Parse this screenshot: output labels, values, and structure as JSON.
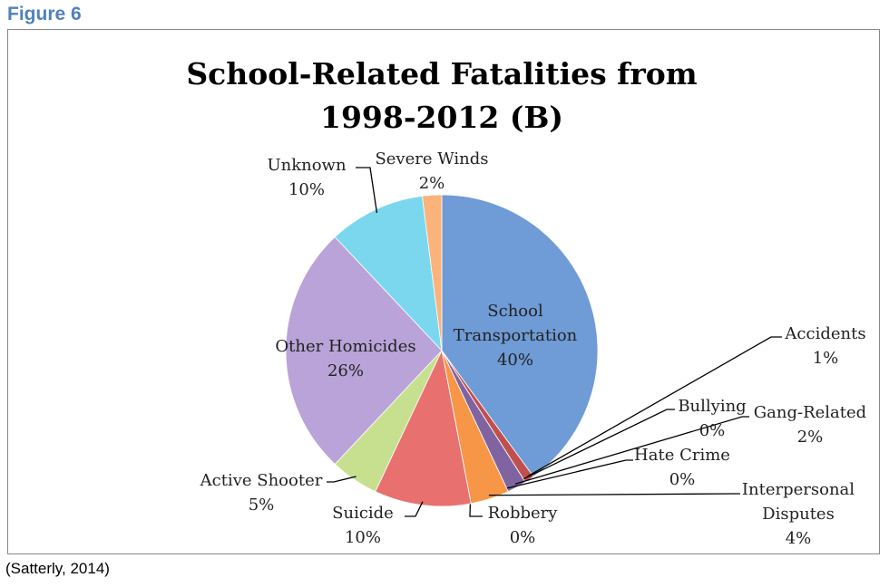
{
  "figure_label": "Figure 6",
  "caption": "(Satterly, 2014)",
  "chart_data": {
    "type": "pie",
    "title": "School-Related Fatalities from 1998-2012 (B)",
    "categories": [
      "School Transportation",
      "Accidents",
      "Bullying",
      "Gang-Related",
      "Hate Crime",
      "Interpersonal Disputes",
      "Robbery",
      "Suicide",
      "Active Shooter",
      "Other Homicides",
      "Unknown",
      "Severe Winds"
    ],
    "values": [
      40,
      1,
      0,
      2,
      0,
      4,
      0,
      10,
      5,
      26,
      10,
      2
    ],
    "value_labels": [
      "40%",
      "1%",
      "0%",
      "2%",
      "0%",
      "4%",
      "0%",
      "10%",
      "5%",
      "26%",
      "10%",
      "2%"
    ],
    "colors": [
      "#6f9bd6",
      "#c0504d",
      "#9bbb59",
      "#8064a2",
      "#4bacc6",
      "#f79646",
      "#95b3d7",
      "#e8716f",
      "#c6e08f",
      "#b9a3d8",
      "#7ad7ee",
      "#fab37a"
    ]
  }
}
